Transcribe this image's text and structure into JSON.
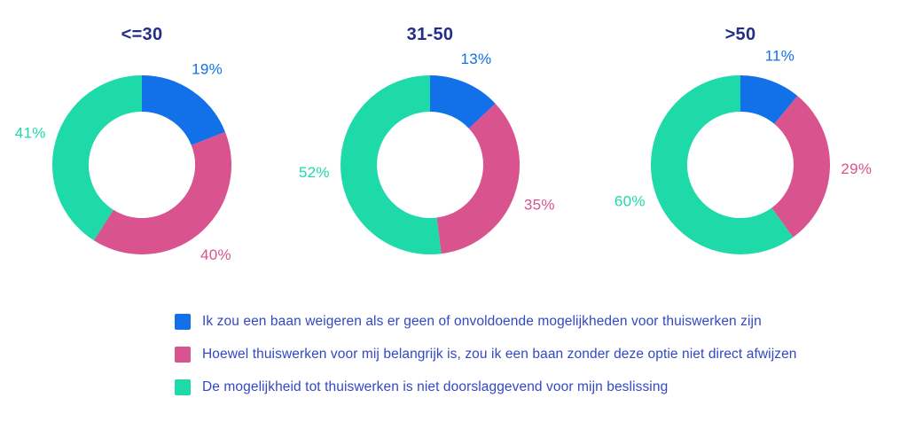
{
  "chart_style": {
    "series_colors": [
      "#1270E8",
      "#D9538E",
      "#1EDAA8"
    ],
    "title_color": "#232E87",
    "legend_text_color": "#3348C4",
    "background": "#FFFFFF",
    "legend_position": "bottom"
  },
  "chart_data": [
    {
      "type": "pie",
      "subtype": "donut",
      "title": "<=30",
      "unit": "%",
      "labels": [
        "Ik zou een baan weigeren als er geen of onvoldoende mogelijkheden voor thuiswerken zijn",
        "Hoewel thuiswerken voor mij belangrijk is, zou ik een baan zonder deze optie niet direct afwijzen",
        "De mogelijkheid tot thuiswerken is niet doorslaggevend voor mijn beslissing"
      ],
      "values": [
        19,
        40,
        41
      ],
      "total": 100
    },
    {
      "type": "pie",
      "subtype": "donut",
      "title": "31-50",
      "unit": "%",
      "labels": [
        "Ik zou een baan weigeren als er geen of onvoldoende mogelijkheden voor thuiswerken zijn",
        "Hoewel thuiswerken voor mij belangrijk is, zou ik een baan zonder deze optie niet direct afwijzen",
        "De mogelijkheid tot thuiswerken is niet doorslaggevend voor mijn beslissing"
      ],
      "values": [
        13,
        35,
        52
      ],
      "total": 100
    },
    {
      "type": "pie",
      "subtype": "donut",
      "title": ">50",
      "unit": "%",
      "labels": [
        "Ik zou een baan weigeren als er geen of onvoldoende mogelijkheden voor thuiswerken zijn",
        "Hoewel thuiswerken voor mij belangrijk is, zou ik een baan zonder deze optie niet direct afwijzen",
        "De mogelijkheid tot thuiswerken is niet doorslaggevend voor mijn beslissing"
      ],
      "values": [
        11,
        29,
        60
      ],
      "total": 100
    }
  ],
  "legend": {
    "items": [
      {
        "label": "Ik zou een baan weigeren als er geen of onvoldoende mogelijkheden voor thuiswerken zijn",
        "color": "#1270E8"
      },
      {
        "label": "Hoewel thuiswerken voor mij belangrijk is, zou ik een baan zonder deze optie niet direct afwijzen",
        "color": "#D9538E"
      },
      {
        "label": "De mogelijkheid tot thuiswerken is niet doorslaggevend voor mijn beslissing",
        "color": "#1EDAA8"
      }
    ]
  }
}
